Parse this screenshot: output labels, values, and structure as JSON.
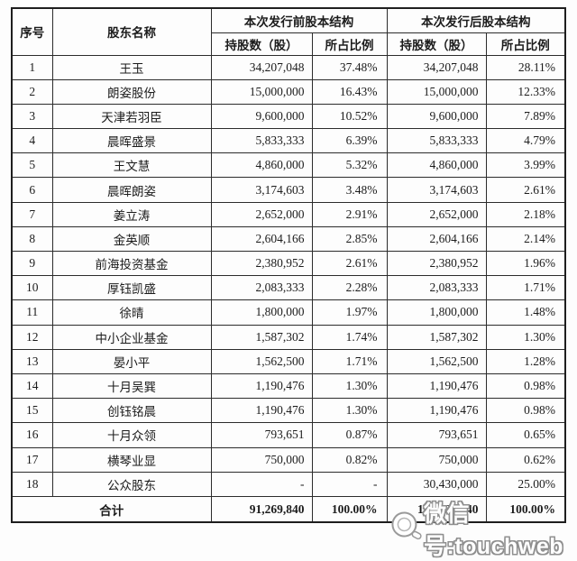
{
  "table": {
    "headers": {
      "col_index": "序号",
      "col_name": "股东名称",
      "group_before": "本次发行前股本结构",
      "group_after": "本次发行后股本结构",
      "col_shares_before": "持股数（股）",
      "col_ratio_before": "所占比例",
      "col_shares_after": "持股数（股）",
      "col_ratio_after": "所占比例"
    },
    "rows": [
      {
        "index": "1",
        "name": "王玉",
        "shares_before": "34,207,048",
        "ratio_before": "37.48%",
        "shares_after": "34,207,048",
        "ratio_after": "28.11%"
      },
      {
        "index": "2",
        "name": "朗姿股份",
        "shares_before": "15,000,000",
        "ratio_before": "16.43%",
        "shares_after": "15,000,000",
        "ratio_after": "12.33%"
      },
      {
        "index": "3",
        "name": "天津若羽臣",
        "shares_before": "9,600,000",
        "ratio_before": "10.52%",
        "shares_after": "9,600,000",
        "ratio_after": "7.89%"
      },
      {
        "index": "4",
        "name": "晨晖盛景",
        "shares_before": "5,833,333",
        "ratio_before": "6.39%",
        "shares_after": "5,833,333",
        "ratio_after": "4.79%"
      },
      {
        "index": "5",
        "name": "王文慧",
        "shares_before": "4,860,000",
        "ratio_before": "5.32%",
        "shares_after": "4,860,000",
        "ratio_after": "3.99%"
      },
      {
        "index": "6",
        "name": "晨晖朗姿",
        "shares_before": "3,174,603",
        "ratio_before": "3.48%",
        "shares_after": "3,174,603",
        "ratio_after": "2.61%"
      },
      {
        "index": "7",
        "name": "姜立涛",
        "shares_before": "2,652,000",
        "ratio_before": "2.91%",
        "shares_after": "2,652,000",
        "ratio_after": "2.18%"
      },
      {
        "index": "8",
        "name": "金英顺",
        "shares_before": "2,604,166",
        "ratio_before": "2.85%",
        "shares_after": "2,604,166",
        "ratio_after": "2.14%"
      },
      {
        "index": "9",
        "name": "前海投资基金",
        "shares_before": "2,380,952",
        "ratio_before": "2.61%",
        "shares_after": "2,380,952",
        "ratio_after": "1.96%"
      },
      {
        "index": "10",
        "name": "厚钰凯盛",
        "shares_before": "2,083,333",
        "ratio_before": "2.28%",
        "shares_after": "2,083,333",
        "ratio_after": "1.71%"
      },
      {
        "index": "11",
        "name": "徐晴",
        "shares_before": "1,800,000",
        "ratio_before": "1.97%",
        "shares_after": "1,800,000",
        "ratio_after": "1.48%"
      },
      {
        "index": "12",
        "name": "中小企业基金",
        "shares_before": "1,587,302",
        "ratio_before": "1.74%",
        "shares_after": "1,587,302",
        "ratio_after": "1.30%"
      },
      {
        "index": "13",
        "name": "晏小平",
        "shares_before": "1,562,500",
        "ratio_before": "1.71%",
        "shares_after": "1,562,500",
        "ratio_after": "1.28%"
      },
      {
        "index": "14",
        "name": "十月吴巽",
        "shares_before": "1,190,476",
        "ratio_before": "1.30%",
        "shares_after": "1,190,476",
        "ratio_after": "0.98%"
      },
      {
        "index": "15",
        "name": "创钰铭晨",
        "shares_before": "1,190,476",
        "ratio_before": "1.30%",
        "shares_after": "1,190,476",
        "ratio_after": "0.98%"
      },
      {
        "index": "16",
        "name": "十月众领",
        "shares_before": "793,651",
        "ratio_before": "0.87%",
        "shares_after": "793,651",
        "ratio_after": "0.65%"
      },
      {
        "index": "17",
        "name": "横琴业显",
        "shares_before": "750,000",
        "ratio_before": "0.82%",
        "shares_after": "750,000",
        "ratio_after": "0.62%"
      },
      {
        "index": "18",
        "name": "公众股东",
        "shares_before": "-",
        "ratio_before": "-",
        "shares_after": "30,430,000",
        "ratio_after": "25.00%"
      }
    ],
    "total": {
      "label": "合计",
      "shares_before": "91,269,840",
      "ratio_before": "100.00%",
      "shares_after": "121,699,840",
      "ratio_after": "100.00%"
    }
  },
  "watermark": {
    "text": "微信号:touchweb",
    "icon": "magnifier-icon",
    "text_color": "#ffffff",
    "outline_color": "#8f8f8f"
  }
}
